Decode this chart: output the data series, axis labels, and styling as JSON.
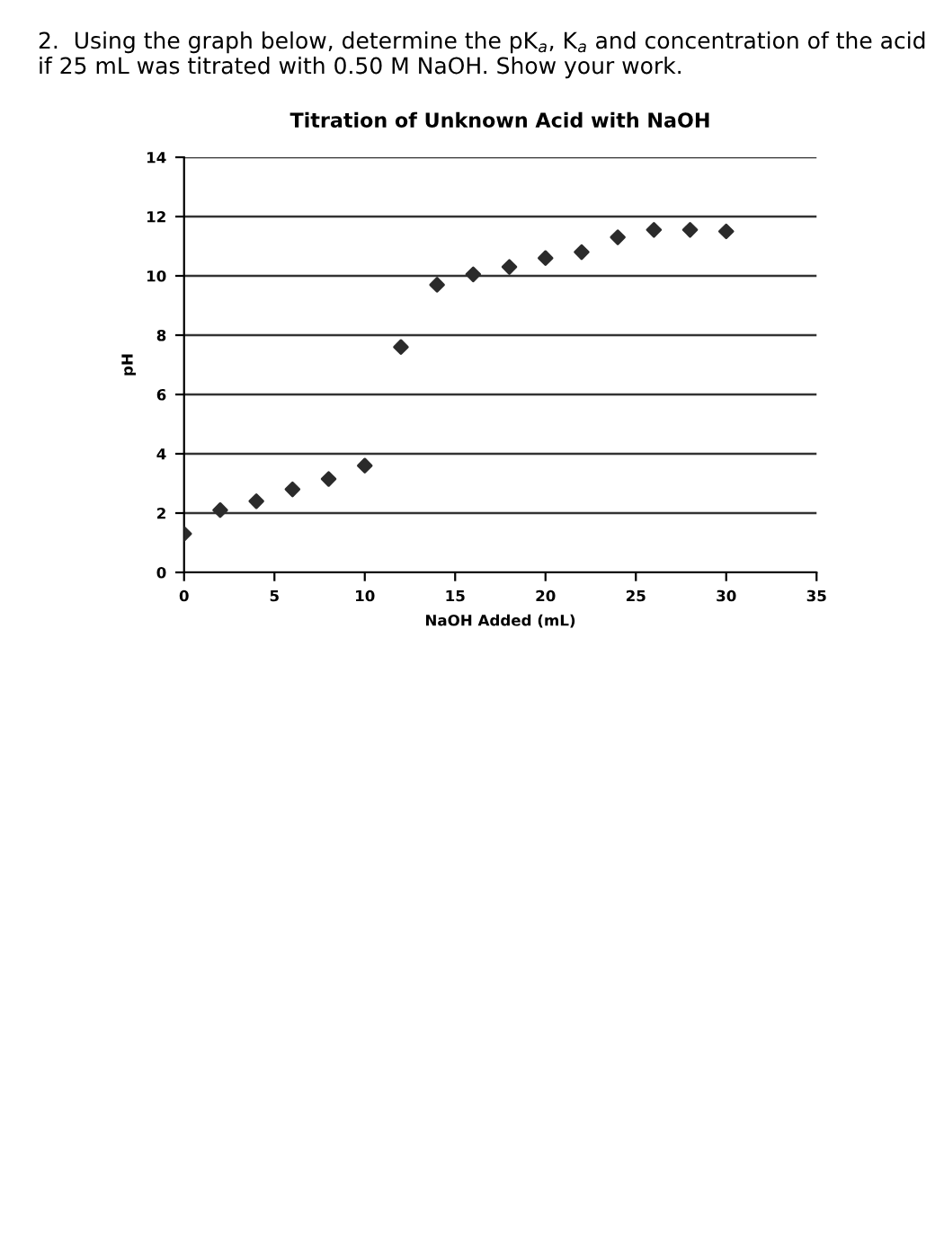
{
  "chart_data": {
    "type": "scatter",
    "title": "Titration of Unknown Acid with NaOH",
    "xlabel": "NaOH Added (mL)",
    "ylabel": "pH",
    "annotations": [
      "2.  Using the graph below, determine the pK$_{a}$, K$_{a}$ and concentration of the acid if 25 mL was titrated with 0.50 M NaOH. Show your work."
    ],
    "x": [
      0,
      2,
      4,
      6,
      8,
      10,
      12,
      14,
      16,
      18,
      20,
      22,
      24,
      26,
      28,
      30
    ],
    "series": [
      {
        "color": "#2b2b2b",
        "values": [
          1.3,
          2.1,
          2.4,
          2.8,
          3.15,
          3.6,
          7.6,
          9.7,
          10.05,
          10.3,
          10.6,
          10.8,
          11.3,
          11.55,
          11.55,
          11.5
        ]
      }
    ],
    "xlim": [
      0,
      35
    ],
    "xticks": [
      0,
      5,
      10,
      15,
      20,
      25,
      30,
      35
    ],
    "ylim": [
      0,
      14
    ],
    "yticks": [
      0,
      2,
      4,
      6,
      8,
      10,
      12,
      14
    ],
    "grid": "y",
    "marker": "diamond",
    "legend": false
  }
}
